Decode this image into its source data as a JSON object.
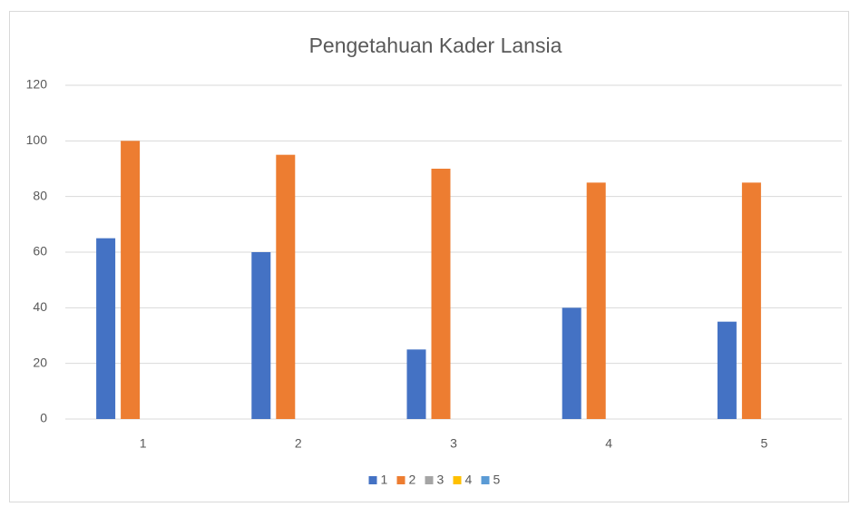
{
  "chart_data": {
    "type": "bar",
    "title": "Pengetahuan Kader Lansia",
    "categories": [
      "1",
      "2",
      "3",
      "4",
      "5"
    ],
    "series": [
      {
        "name": "1",
        "color": "#4472c4",
        "values": [
          65,
          60,
          25,
          40,
          35
        ]
      },
      {
        "name": "2",
        "color": "#ed7d31",
        "values": [
          100,
          95,
          90,
          85,
          85
        ]
      },
      {
        "name": "3",
        "color": "#a5a5a5",
        "values": [
          null,
          null,
          null,
          null,
          null
        ]
      },
      {
        "name": "4",
        "color": "#ffc000",
        "values": [
          null,
          null,
          null,
          null,
          null
        ]
      },
      {
        "name": "5",
        "color": "#5b9bd5",
        "values": [
          null,
          null,
          null,
          null,
          null
        ]
      }
    ],
    "ylim": [
      0,
      120
    ],
    "yticks": [
      0,
      20,
      40,
      60,
      80,
      100,
      120
    ],
    "grid": true,
    "legend": "bottom"
  }
}
